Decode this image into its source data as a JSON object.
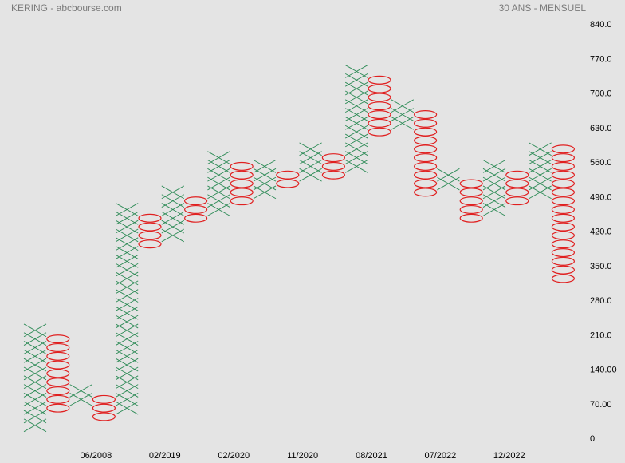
{
  "header": {
    "left": "KERING - abcbourse.com",
    "right": "30 ANS - MENSUEL"
  },
  "colors": {
    "x_mark": "#2e8b57",
    "o_mark": "#e02020",
    "background": "#e4e4e4"
  },
  "chart_data": {
    "type": "point-and-figure",
    "box_size": 17.5,
    "ylim": [
      0,
      840
    ],
    "y_ticks": [
      "840.0",
      "770.0",
      "700.0",
      "630.0",
      "560.0",
      "490.0",
      "420.0",
      "350.0",
      "280.0",
      "210.0",
      "140.00",
      "70.00",
      "0"
    ],
    "y_tick_values": [
      840,
      770,
      700,
      630,
      560,
      490,
      420,
      350,
      280,
      210,
      140,
      70,
      0
    ],
    "x_labels": [
      {
        "column": 3,
        "label": "06/2008"
      },
      {
        "column": 6,
        "label": "02/2019"
      },
      {
        "column": 9,
        "label": "02/2020"
      },
      {
        "column": 12,
        "label": "11/2020"
      },
      {
        "column": 15,
        "label": "08/2021"
      },
      {
        "column": 18,
        "label": "07/2022"
      },
      {
        "column": 21,
        "label": "12/2022"
      }
    ],
    "columns": [
      {
        "type": "X",
        "low": 17.5,
        "high": 227.5
      },
      {
        "type": "O",
        "low": 52.5,
        "high": 210.0
      },
      {
        "type": "X",
        "low": 70.0,
        "high": 105.0
      },
      {
        "type": "O",
        "low": 35.0,
        "high": 87.5
      },
      {
        "type": "X",
        "low": 52.5,
        "high": 472.5
      },
      {
        "type": "O",
        "low": 385.0,
        "high": 455.0
      },
      {
        "type": "X",
        "low": 402.5,
        "high": 507.5
      },
      {
        "type": "O",
        "low": 437.5,
        "high": 490.0
      },
      {
        "type": "X",
        "low": 455.0,
        "high": 577.5
      },
      {
        "type": "O",
        "low": 472.5,
        "high": 560.0
      },
      {
        "type": "X",
        "low": 490.0,
        "high": 560.0
      },
      {
        "type": "O",
        "low": 507.5,
        "high": 542.5
      },
      {
        "type": "X",
        "low": 525.0,
        "high": 595.0
      },
      {
        "type": "O",
        "low": 525.0,
        "high": 577.5
      },
      {
        "type": "X",
        "low": 542.5,
        "high": 752.5
      },
      {
        "type": "O",
        "low": 612.5,
        "high": 735.0
      },
      {
        "type": "X",
        "low": 630.0,
        "high": 682.5
      },
      {
        "type": "O",
        "low": 490.0,
        "high": 665.0
      },
      {
        "type": "X",
        "low": 507.5,
        "high": 542.5
      },
      {
        "type": "O",
        "low": 437.5,
        "high": 525.0
      },
      {
        "type": "X",
        "low": 455.0,
        "high": 560.0
      },
      {
        "type": "O",
        "low": 472.5,
        "high": 542.5
      },
      {
        "type": "X",
        "low": 490.0,
        "high": 595.0
      },
      {
        "type": "O",
        "low": 315.0,
        "high": 595.0
      }
    ]
  }
}
